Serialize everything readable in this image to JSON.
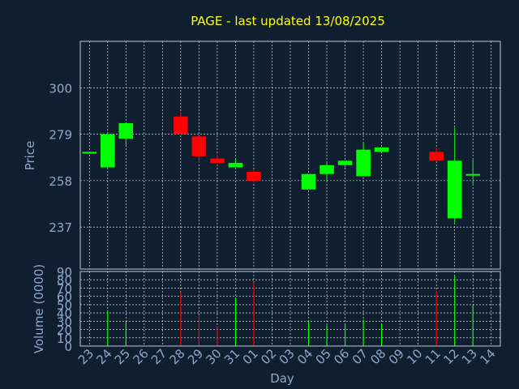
{
  "chart_data": {
    "type": "candlestick",
    "title": "PAGE - last updated 13/08/2025",
    "xlabel": "Day",
    "ylabel": "Price",
    "volume_label": "Volume (0000)",
    "x_ticks": [
      "23",
      "24",
      "25",
      "26",
      "27",
      "28",
      "29",
      "30",
      "31",
      "01",
      "02",
      "03",
      "04",
      "05",
      "06",
      "07",
      "08",
      "09",
      "10",
      "11",
      "12",
      "13",
      "14"
    ],
    "price_ticks": [
      237,
      258,
      279,
      300
    ],
    "price_ylim": [
      218,
      321
    ],
    "volume_ticks": [
      0,
      10,
      20,
      30,
      40,
      50,
      60,
      70,
      80,
      90
    ],
    "volume_ylim": [
      0,
      90
    ],
    "grid": true,
    "colors": {
      "background": "#0f1f30",
      "up": "#00ff00",
      "down": "#ff0000",
      "title": "#ffff00",
      "axis_text": "#8fa8c8",
      "frame": "#c0c8d8",
      "grid": "#ffffff"
    },
    "candles": [
      {
        "day": "23",
        "open": 271,
        "high": 271,
        "low": 271,
        "close": 271,
        "volume": 0
      },
      {
        "day": "24",
        "open": 264,
        "high": 280,
        "low": 264,
        "close": 279,
        "volume": 43
      },
      {
        "day": "25",
        "open": 277,
        "high": 284,
        "low": 274,
        "close": 284,
        "volume": 30
      },
      {
        "day": "28",
        "open": 287,
        "high": 289,
        "low": 279,
        "close": 279,
        "volume": 65
      },
      {
        "day": "29",
        "open": 278,
        "high": 278,
        "low": 266,
        "close": 269,
        "volume": 36
      },
      {
        "day": "30",
        "open": 268,
        "high": 270,
        "low": 265,
        "close": 266,
        "volume": 23
      },
      {
        "day": "31",
        "open": 264,
        "high": 268,
        "low": 264,
        "close": 266,
        "volume": 58
      },
      {
        "day": "01",
        "open": 262,
        "high": 263,
        "low": 257,
        "close": 258,
        "volume": 77
      },
      {
        "day": "04",
        "open": 254,
        "high": 261,
        "low": 254,
        "close": 261,
        "volume": 30
      },
      {
        "day": "05",
        "open": 261,
        "high": 266,
        "low": 258,
        "close": 265,
        "volume": 25
      },
      {
        "day": "06",
        "open": 265,
        "high": 267,
        "low": 264,
        "close": 267,
        "volume": 27
      },
      {
        "day": "07",
        "open": 260,
        "high": 275,
        "low": 260,
        "close": 272,
        "volume": 32
      },
      {
        "day": "08",
        "open": 271,
        "high": 273,
        "low": 271,
        "close": 273,
        "volume": 27
      },
      {
        "day": "11",
        "open": 271,
        "high": 273,
        "low": 267,
        "close": 267,
        "volume": 67
      },
      {
        "day": "12",
        "open": 241,
        "high": 282,
        "low": 239,
        "close": 267,
        "volume": 85
      },
      {
        "day": "13",
        "open": 261,
        "high": 268,
        "low": 256,
        "close": 261,
        "volume": 49
      }
    ]
  }
}
